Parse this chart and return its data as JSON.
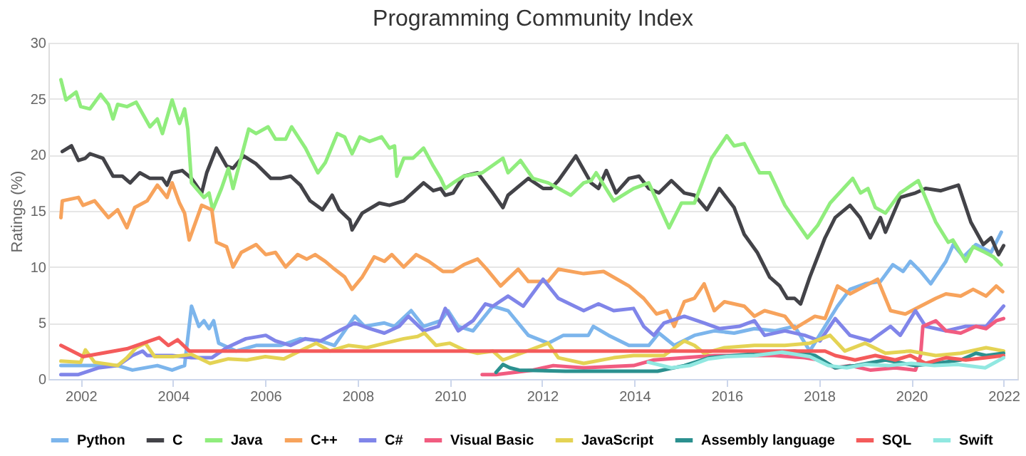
{
  "chart_data": {
    "type": "line",
    "title": "Programming Community Index",
    "ylabel": "Ratings (%)",
    "xlim": [
      2001.3,
      2022.3
    ],
    "xticks": [
      2002,
      2004,
      2006,
      2008,
      2010,
      2012,
      2014,
      2016,
      2018,
      2020,
      2022
    ],
    "ylim": [
      0,
      30
    ],
    "yticks": [
      0,
      5,
      10,
      15,
      20,
      25,
      30
    ],
    "grid": "y",
    "legend": "bottom",
    "marker": "none",
    "line_style": "solid",
    "series": [
      {
        "name": "Python",
        "color": "#7cb5ec",
        "x": [
          2001.57,
          2002.05,
          2002.8,
          2003.12,
          2003.66,
          2003.98,
          2004.25,
          2004.4,
          2004.56,
          2004.67,
          2004.78,
          2004.88,
          2004.99,
          2005.37,
          2005.8,
          2006.33,
          2006.76,
          2007.2,
          2007.5,
          2007.94,
          2008.15,
          2008.58,
          2008.8,
          2009.16,
          2009.43,
          2009.8,
          2009.96,
          2010.18,
          2010.5,
          2010.93,
          2011.26,
          2011.7,
          2012.13,
          2012.46,
          2013.0,
          2013.11,
          2013.44,
          2013.88,
          2014.31,
          2014.53,
          2014.86,
          2015.3,
          2015.73,
          2016.16,
          2016.6,
          2017.04,
          2017.47,
          2017.8,
          2018.13,
          2018.4,
          2018.67,
          2019.0,
          2019.33,
          2019.6,
          2019.82,
          2019.98,
          2020.2,
          2020.42,
          2020.75,
          2020.91,
          2021.13,
          2021.4,
          2021.73,
          2021.95
        ],
        "values": [
          1.2,
          1.2,
          1.2,
          0.8,
          1.2,
          0.8,
          1.2,
          6.5,
          4.7,
          5.2,
          4.5,
          5.2,
          3.2,
          2.5,
          3.0,
          3.0,
          3.6,
          3.4,
          3.0,
          5.6,
          4.7,
          5.0,
          4.7,
          6.1,
          4.7,
          5.2,
          6.1,
          4.7,
          4.3,
          6.5,
          6.1,
          3.9,
          3.2,
          3.9,
          3.9,
          4.7,
          3.9,
          3.0,
          3.0,
          4.1,
          3.0,
          3.9,
          4.3,
          4.1,
          4.5,
          4.3,
          4.7,
          2.5,
          4.7,
          6.5,
          8.0,
          8.5,
          8.7,
          10.2,
          9.6,
          10.5,
          9.6,
          8.5,
          10.5,
          12.0,
          10.9,
          12.0,
          11.3,
          13.1
        ]
      },
      {
        "name": "C",
        "color": "#434348",
        "x": [
          2001.6,
          2001.8,
          2001.95,
          2002.1,
          2002.2,
          2002.48,
          2002.7,
          2002.9,
          2003.07,
          2003.28,
          2003.5,
          2003.77,
          2003.87,
          2003.98,
          2004.2,
          2004.4,
          2004.62,
          2004.73,
          2004.94,
          2005.16,
          2005.3,
          2005.53,
          2005.8,
          2006.12,
          2006.33,
          2006.55,
          2006.76,
          2006.97,
          2007.24,
          2007.45,
          2007.6,
          2007.83,
          2007.88,
          2008.1,
          2008.47,
          2008.69,
          2009.0,
          2009.43,
          2009.64,
          2009.8,
          2009.9,
          2010.07,
          2010.3,
          2010.6,
          2010.93,
          2011.15,
          2011.26,
          2011.7,
          2012.02,
          2012.19,
          2012.35,
          2012.73,
          2013.06,
          2013.22,
          2013.39,
          2013.6,
          2013.88,
          2014.1,
          2014.31,
          2014.53,
          2014.8,
          2015.08,
          2015.3,
          2015.57,
          2015.84,
          2016.16,
          2016.38,
          2016.66,
          2016.93,
          2017.15,
          2017.31,
          2017.47,
          2017.6,
          2017.8,
          2018.13,
          2018.35,
          2018.67,
          2018.89,
          2019.11,
          2019.33,
          2019.44,
          2019.76,
          2020.09,
          2020.31,
          2020.64,
          2021.02,
          2021.29,
          2021.56,
          2021.73,
          2021.89,
          2022.0
        ],
        "values": [
          20.3,
          20.8,
          19.5,
          19.7,
          20.1,
          19.7,
          18.1,
          18.1,
          17.5,
          18.4,
          17.9,
          17.9,
          17.3,
          18.4,
          18.6,
          17.9,
          16.6,
          18.4,
          20.6,
          19.0,
          18.8,
          19.9,
          19.2,
          17.9,
          17.9,
          18.1,
          17.3,
          15.9,
          15.1,
          16.4,
          15.1,
          14.2,
          13.3,
          14.8,
          15.7,
          15.5,
          15.9,
          17.5,
          16.8,
          17.0,
          16.4,
          16.6,
          18.1,
          18.4,
          16.6,
          15.3,
          16.4,
          17.9,
          17.0,
          17.0,
          17.7,
          19.9,
          17.5,
          17.0,
          18.6,
          16.6,
          17.9,
          18.1,
          17.0,
          16.6,
          17.7,
          16.6,
          16.4,
          15.1,
          17.0,
          15.3,
          12.9,
          11.3,
          9.1,
          8.3,
          7.2,
          7.2,
          6.7,
          9.1,
          12.6,
          14.4,
          15.5,
          14.4,
          12.6,
          14.4,
          13.1,
          16.2,
          16.6,
          17.0,
          16.8,
          17.3,
          14.0,
          12.0,
          12.6,
          11.1,
          11.9
        ]
      },
      {
        "name": "Java",
        "color": "#90ed7d",
        "x": [
          2001.57,
          2001.68,
          2001.9,
          2002.0,
          2002.2,
          2002.43,
          2002.6,
          2002.7,
          2002.8,
          2003.0,
          2003.2,
          2003.5,
          2003.66,
          2003.77,
          2003.98,
          2004.14,
          2004.25,
          2004.32,
          2004.4,
          2004.67,
          2004.78,
          2004.86,
          2005.05,
          2005.2,
          2005.3,
          2005.64,
          2005.8,
          2006.06,
          2006.22,
          2006.44,
          2006.57,
          2006.87,
          2007.14,
          2007.3,
          2007.56,
          2007.72,
          2007.88,
          2008.05,
          2008.26,
          2008.52,
          2008.69,
          2008.8,
          2008.85,
          2009.0,
          2009.2,
          2009.43,
          2009.64,
          2009.8,
          2009.9,
          2010.07,
          2010.3,
          2010.7,
          2011.15,
          2011.26,
          2011.53,
          2011.8,
          2012.13,
          2012.62,
          2012.9,
          2013.06,
          2013.17,
          2013.55,
          2013.98,
          2014.31,
          2014.75,
          2015.02,
          2015.3,
          2015.67,
          2016.0,
          2016.16,
          2016.38,
          2016.71,
          2016.93,
          2017.26,
          2017.75,
          2017.97,
          2018.24,
          2018.73,
          2018.9,
          2019.06,
          2019.22,
          2019.44,
          2019.76,
          2020.15,
          2020.53,
          2020.8,
          2020.9,
          2021.18,
          2021.34,
          2021.6,
          2021.78,
          2021.95
        ],
        "values": [
          26.7,
          24.9,
          25.6,
          24.3,
          24.1,
          25.4,
          24.5,
          23.2,
          24.5,
          24.3,
          24.7,
          22.5,
          23.2,
          21.9,
          24.9,
          22.8,
          24.1,
          22.3,
          17.5,
          16.2,
          16.6,
          15.1,
          17.0,
          18.8,
          17.0,
          22.3,
          21.9,
          22.5,
          21.4,
          21.4,
          22.5,
          20.6,
          18.4,
          19.3,
          21.9,
          21.6,
          20.1,
          21.6,
          21.2,
          21.6,
          20.6,
          20.8,
          18.1,
          19.7,
          19.7,
          20.6,
          19.0,
          17.9,
          17.0,
          17.5,
          18.1,
          18.4,
          19.7,
          18.4,
          19.5,
          17.9,
          17.5,
          16.4,
          17.5,
          17.7,
          18.4,
          15.9,
          17.0,
          17.5,
          13.5,
          15.7,
          15.7,
          19.7,
          21.7,
          20.8,
          21.0,
          18.4,
          18.4,
          15.5,
          12.6,
          13.7,
          15.7,
          17.9,
          16.6,
          17.0,
          15.3,
          14.8,
          16.6,
          17.7,
          14.0,
          12.2,
          12.4,
          10.5,
          11.8,
          11.3,
          10.9,
          10.2
        ]
      },
      {
        "name": "C++",
        "color": "#f7a35c",
        "x": [
          2001.57,
          2001.6,
          2001.95,
          2002.05,
          2002.3,
          2002.6,
          2002.8,
          2003.0,
          2003.17,
          2003.44,
          2003.66,
          2003.87,
          2003.98,
          2004.14,
          2004.25,
          2004.35,
          2004.62,
          2004.84,
          2004.94,
          2005.16,
          2005.3,
          2005.48,
          2005.8,
          2006.01,
          2006.22,
          2006.44,
          2006.7,
          2006.9,
          2007.08,
          2007.3,
          2007.5,
          2007.72,
          2007.88,
          2008.1,
          2008.36,
          2008.58,
          2008.74,
          2009.0,
          2009.27,
          2009.54,
          2009.85,
          2010.07,
          2010.3,
          2010.6,
          2010.8,
          2011.1,
          2011.48,
          2011.7,
          2012.13,
          2012.35,
          2012.9,
          2013.33,
          2013.88,
          2014.2,
          2014.48,
          2014.7,
          2014.86,
          2015.08,
          2015.3,
          2015.51,
          2015.73,
          2015.95,
          2016.38,
          2016.6,
          2016.82,
          2017.26,
          2017.47,
          2017.91,
          2018.13,
          2018.4,
          2018.67,
          2019.27,
          2019.55,
          2019.87,
          2020.2,
          2020.53,
          2020.75,
          2021.07,
          2021.34,
          2021.62,
          2021.84,
          2021.98
        ],
        "values": [
          14.4,
          15.9,
          16.2,
          15.5,
          15.9,
          14.4,
          15.1,
          13.5,
          15.3,
          15.9,
          17.3,
          16.2,
          17.5,
          15.7,
          14.8,
          12.4,
          15.5,
          15.1,
          12.2,
          11.8,
          10.0,
          11.3,
          12.0,
          11.1,
          11.3,
          10.0,
          11.1,
          10.7,
          11.1,
          10.5,
          9.8,
          9.1,
          8.0,
          9.1,
          10.9,
          10.5,
          11.1,
          10.0,
          11.1,
          10.5,
          9.6,
          9.6,
          10.2,
          10.7,
          9.8,
          8.3,
          9.8,
          8.7,
          8.7,
          9.8,
          9.4,
          9.6,
          8.3,
          7.2,
          5.8,
          6.1,
          4.7,
          6.9,
          7.2,
          8.5,
          6.1,
          6.9,
          6.5,
          5.6,
          6.1,
          5.6,
          4.5,
          5.6,
          5.4,
          8.3,
          7.6,
          8.9,
          6.1,
          5.8,
          6.5,
          7.2,
          7.6,
          7.4,
          8.0,
          7.4,
          8.3,
          7.8
        ]
      },
      {
        "name": "C#",
        "color": "#8085e9",
        "x": [
          2001.57,
          2001.95,
          2002.38,
          2002.8,
          2003.12,
          2003.34,
          2003.44,
          2003.98,
          2004.4,
          2004.84,
          2005.16,
          2005.58,
          2006.01,
          2006.22,
          2006.55,
          2006.87,
          2007.2,
          2007.6,
          2007.94,
          2008.26,
          2008.58,
          2008.9,
          2009.1,
          2009.43,
          2009.75,
          2009.9,
          2010.18,
          2010.5,
          2010.77,
          2010.93,
          2011.26,
          2011.59,
          2012.02,
          2012.35,
          2012.9,
          2013.22,
          2013.55,
          2013.98,
          2014.2,
          2014.42,
          2014.64,
          2015.08,
          2015.51,
          2015.84,
          2016.27,
          2016.6,
          2016.82,
          2017.26,
          2017.69,
          2018.02,
          2018.35,
          2018.67,
          2019.11,
          2019.55,
          2019.76,
          2020.09,
          2020.31,
          2020.75,
          2021.18,
          2021.62,
          2022.0
        ],
        "values": [
          0.4,
          0.4,
          1.0,
          1.2,
          2.1,
          2.5,
          2.1,
          2.1,
          1.9,
          1.9,
          2.8,
          3.6,
          3.9,
          3.4,
          3.0,
          3.6,
          3.4,
          4.3,
          5.0,
          4.5,
          4.1,
          4.7,
          5.6,
          4.3,
          4.7,
          6.3,
          4.3,
          5.2,
          6.7,
          6.5,
          7.4,
          6.5,
          8.9,
          7.2,
          6.1,
          6.7,
          6.1,
          6.3,
          4.7,
          3.9,
          5.0,
          5.6,
          5.0,
          4.5,
          4.7,
          5.2,
          3.9,
          4.3,
          3.9,
          3.4,
          5.4,
          3.9,
          3.4,
          4.7,
          3.9,
          6.1,
          4.7,
          4.3,
          4.7,
          4.7,
          6.5
        ]
      },
      {
        "name": "Visual Basic",
        "color": "#f15c80",
        "x": [
          2010.7,
          2011.0,
          2011.8,
          2012.24,
          2012.9,
          2013.98,
          2014.42,
          2015.08,
          2015.73,
          2016.38,
          2017.04,
          2017.69,
          2018.0,
          2018.35,
          2018.67,
          2019.11,
          2019.65,
          2020.09,
          2020.2,
          2020.25,
          2020.53,
          2020.75,
          2021.07,
          2021.4,
          2021.62,
          2021.84,
          2022.0
        ],
        "values": [
          0.4,
          0.4,
          0.8,
          1.2,
          1.0,
          1.2,
          1.7,
          1.9,
          2.1,
          2.1,
          2.1,
          1.9,
          1.7,
          1.0,
          1.2,
          0.8,
          1.0,
          0.8,
          2.1,
          4.7,
          5.2,
          4.3,
          4.1,
          4.7,
          4.5,
          5.2,
          5.4
        ]
      },
      {
        "name": "JavaScript",
        "color": "#e4d354",
        "x": [
          2001.57,
          2002.0,
          2002.1,
          2002.3,
          2002.8,
          2003.0,
          2003.2,
          2003.4,
          2003.6,
          2004.0,
          2004.4,
          2004.8,
          2005.2,
          2005.6,
          2006.0,
          2006.4,
          2006.8,
          2007.1,
          2007.4,
          2007.8,
          2008.2,
          2008.6,
          2009.0,
          2009.3,
          2009.45,
          2009.7,
          2010.0,
          2010.3,
          2010.6,
          2010.93,
          2011.15,
          2012.13,
          2012.35,
          2012.9,
          2013.55,
          2013.98,
          2014.64,
          2015.08,
          2015.3,
          2015.51,
          2015.95,
          2016.6,
          2017.26,
          2017.8,
          2018.24,
          2018.56,
          2019.0,
          2019.44,
          2019.98,
          2020.53,
          2021.07,
          2021.62,
          2022.0
        ],
        "values": [
          1.6,
          1.5,
          2.6,
          1.5,
          1.2,
          1.9,
          2.8,
          3.2,
          2.0,
          2.0,
          2.2,
          1.4,
          1.8,
          1.7,
          2.0,
          1.8,
          2.6,
          3.2,
          2.5,
          3.0,
          2.8,
          3.2,
          3.6,
          3.8,
          4.1,
          3.0,
          3.2,
          2.6,
          2.3,
          2.5,
          1.7,
          3.2,
          1.9,
          1.4,
          1.9,
          2.1,
          2.1,
          3.4,
          3.0,
          2.3,
          2.8,
          3.0,
          3.0,
          3.2,
          3.9,
          2.5,
          3.2,
          2.3,
          2.5,
          2.1,
          2.3,
          2.8,
          2.5
        ]
      },
      {
        "name": "Assembly language",
        "color": "#2b908f",
        "x": [
          2011.0,
          2011.15,
          2011.3,
          2011.5,
          2012.5,
          2013.5,
          2014.5,
          2015.08,
          2015.62,
          2016.16,
          2016.82,
          2017.47,
          2017.91,
          2018.35,
          2018.78,
          2019.44,
          2020.09,
          2020.53,
          2021.07,
          2021.4,
          2021.62,
          2022.0
        ],
        "values": [
          0.6,
          1.3,
          1.0,
          0.8,
          0.7,
          0.7,
          0.7,
          1.2,
          1.9,
          2.1,
          2.3,
          2.5,
          2.1,
          1.0,
          1.2,
          1.7,
          1.2,
          1.4,
          1.7,
          2.3,
          2.1,
          2.3
        ]
      },
      {
        "name": "SQL",
        "color": "#f45b5b",
        "x": [
          2001.57,
          2002.05,
          2003.0,
          2003.7,
          2003.9,
          2004.1,
          2004.35,
          2018.0,
          2018.13,
          2018.35,
          2018.78,
          2019.22,
          2019.65,
          2019.98,
          2020.31,
          2020.75,
          2021.18,
          2021.62,
          2022.0
        ],
        "values": [
          3.0,
          2.0,
          2.7,
          3.7,
          3.0,
          3.5,
          2.5,
          2.5,
          2.5,
          2.1,
          1.7,
          2.1,
          1.7,
          2.1,
          1.4,
          1.9,
          1.7,
          1.9,
          2.1
        ]
      },
      {
        "name": "Swift",
        "color": "#91e8e1",
        "x": [
          2014.3,
          2014.8,
          2015.2,
          2015.6,
          2016.0,
          2016.6,
          2017.2,
          2017.8,
          2018.2,
          2018.6,
          2019.0,
          2019.5,
          2020.0,
          2020.5,
          2021.0,
          2021.6,
          2022.0
        ],
        "values": [
          1.5,
          1.0,
          1.2,
          1.8,
          2.0,
          2.1,
          2.4,
          2.0,
          1.2,
          1.0,
          1.3,
          1.2,
          1.4,
          1.2,
          1.3,
          1.0,
          1.9
        ]
      }
    ]
  }
}
